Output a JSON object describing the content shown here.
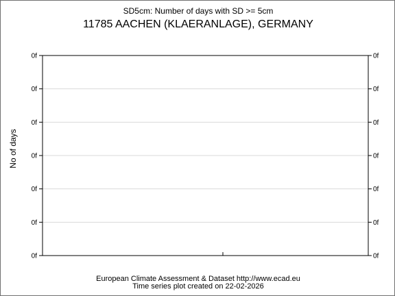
{
  "chart_data": {
    "type": "line",
    "subtitle": "SD5cm: Number of days with SD >= 5cm",
    "title": "11785 AACHEN (KLAERANLAGE), GERMANY",
    "ylabel": "No of days",
    "xlabel": "",
    "y_tick_labels": [
      "0f",
      "0f",
      "0f",
      "0f",
      "0f",
      "0f",
      "0f"
    ],
    "series": [],
    "grid": true
  },
  "footer": {
    "source": "European Climate Assessment & Dataset  http://www.ecad.eu",
    "created": "Time series plot created on 22-02-2026"
  }
}
